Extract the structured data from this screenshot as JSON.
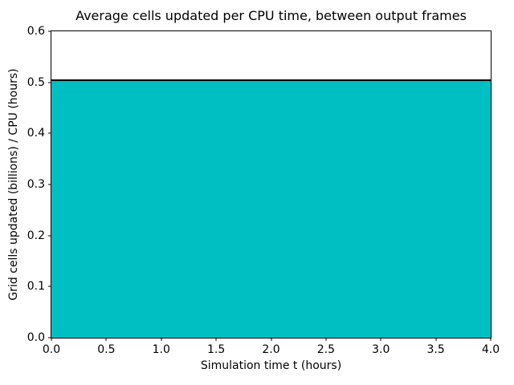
{
  "figure": {
    "background": "#ffffff"
  },
  "chart_data": {
    "type": "area",
    "title": "Average cells updated per CPU time, between output frames",
    "xlabel": "Simulation time t (hours)",
    "ylabel": "Grid cells updated (billions) / CPU (hours)",
    "x": [
      0.0,
      4.0
    ],
    "y": [
      0.504,
      0.504
    ],
    "xlim": [
      0.0,
      4.0
    ],
    "ylim": [
      0.0,
      0.6
    ],
    "xticks": [
      0.0,
      0.5,
      1.0,
      1.5,
      2.0,
      2.5,
      3.0,
      3.5,
      4.0
    ],
    "xtick_labels": [
      "0.0",
      "0.5",
      "1.0",
      "1.5",
      "2.0",
      "2.5",
      "3.0",
      "3.5",
      "4.0"
    ],
    "yticks": [
      0.0,
      0.1,
      0.2,
      0.3,
      0.4,
      0.5,
      0.6
    ],
    "ytick_labels": [
      "0.0",
      "0.1",
      "0.2",
      "0.3",
      "0.4",
      "0.5",
      "0.6"
    ],
    "grid": false,
    "legend": "none",
    "colors": {
      "fill": "#00bfc2",
      "line": "#000000",
      "axes": "#000000",
      "text": "#000000"
    }
  }
}
